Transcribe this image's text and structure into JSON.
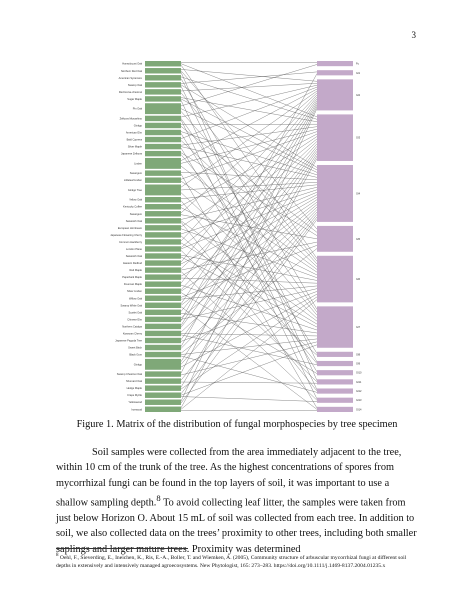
{
  "page": {
    "number": "3"
  },
  "figure": {
    "caption": "Figure 1. Matrix of the distribution of fungal morphospecies by tree specimen",
    "colors": {
      "tree_bar": "#7fa878",
      "fungi_bar": "#c3a9c9",
      "link": "#555555"
    },
    "trees": [
      "Honeylocust Oak",
      "Northern Red Oak",
      "American Sycamore",
      "Swamp Oak",
      "Red Horse-chestnut",
      "Sugar Maple",
      "Pin Oak",
      "Zelkova Musashino",
      "Ginkgo",
      "American Elm",
      "Bald Cypress",
      "Silver Maple",
      "Japanese Zelkova",
      "Linden",
      "Sweetgum",
      "Littleleaf Linden",
      "Ginkgo Tree",
      "Yellow Oak",
      "Kentucky Coffee",
      "Sweetgum",
      "Sawtooth Oak",
      "European Hornbeam",
      "Japanese Flowering Cherry",
      "Common Hackberry",
      "London Plane",
      "Sawtooth Oak",
      "Eastern Redbud",
      "Red Maple",
      "Paperbark Maple",
      "Freeman Maple",
      "Silver Linden",
      "Willow Oak",
      "Swamp White Oak",
      "Scarlet Oak",
      "Chinese Elm",
      "Northern Catalpa",
      "Kwanzan Cherry",
      "Japanese Pagoda Tree",
      "Sweet Birch",
      "Black Gum",
      "Ginkgo",
      "Swamp Chestnut Oak",
      "Shumard Oak",
      "Hedge Maple",
      "Crape Myrtle",
      "Yellowwood",
      "Ironwood"
    ],
    "fungi": [
      "Fu",
      "Gl1",
      "Gl2",
      "Gl3",
      "Gl4",
      "Gl5",
      "Gl6",
      "Gl7",
      "Gl8",
      "Gl9",
      "Gl10",
      "Gl11",
      "Gl12",
      "Gl13",
      "Gl14"
    ],
    "tree_sizes": [
      1,
      1,
      1,
      1,
      1,
      1,
      2,
      1,
      1,
      1,
      1,
      1,
      1,
      2,
      1,
      1,
      2,
      1,
      1,
      1,
      1,
      1,
      1,
      1,
      1,
      1,
      1,
      1,
      1,
      1,
      1,
      1,
      1,
      1,
      1,
      1,
      1,
      1,
      1,
      1,
      2,
      1,
      1,
      1,
      1,
      1,
      1
    ],
    "fungi_sizes": [
      1,
      1,
      6,
      9,
      11,
      5,
      9,
      8,
      1,
      1,
      1,
      1,
      1,
      1,
      1
    ],
    "links": [
      [
        0,
        0
      ],
      [
        0,
        3
      ],
      [
        0,
        6
      ],
      [
        1,
        2
      ],
      [
        1,
        5
      ],
      [
        1,
        11
      ],
      [
        2,
        3
      ],
      [
        2,
        7
      ],
      [
        3,
        1
      ],
      [
        3,
        4
      ],
      [
        3,
        9
      ],
      [
        4,
        2
      ],
      [
        4,
        6
      ],
      [
        5,
        3
      ],
      [
        5,
        4
      ],
      [
        5,
        12
      ],
      [
        6,
        0
      ],
      [
        6,
        4
      ],
      [
        6,
        6
      ],
      [
        7,
        2
      ],
      [
        7,
        7
      ],
      [
        7,
        13
      ],
      [
        8,
        3
      ],
      [
        8,
        5
      ],
      [
        9,
        4
      ],
      [
        9,
        8
      ],
      [
        10,
        2
      ],
      [
        10,
        6
      ],
      [
        11,
        3
      ],
      [
        11,
        4
      ],
      [
        11,
        10
      ],
      [
        12,
        5
      ],
      [
        12,
        7
      ],
      [
        13,
        2
      ],
      [
        13,
        3
      ],
      [
        13,
        6
      ],
      [
        14,
        4
      ],
      [
        14,
        14
      ],
      [
        15,
        3
      ],
      [
        15,
        6
      ],
      [
        16,
        2
      ],
      [
        16,
        4
      ],
      [
        16,
        7
      ],
      [
        17,
        4
      ],
      [
        17,
        9
      ],
      [
        18,
        3
      ],
      [
        18,
        6
      ],
      [
        19,
        2
      ],
      [
        19,
        5
      ],
      [
        20,
        4
      ],
      [
        20,
        7
      ],
      [
        20,
        12
      ],
      [
        21,
        3
      ],
      [
        21,
        6
      ],
      [
        22,
        4
      ],
      [
        22,
        8
      ],
      [
        23,
        2
      ],
      [
        23,
        7
      ],
      [
        24,
        3
      ],
      [
        24,
        4
      ],
      [
        24,
        11
      ],
      [
        25,
        6
      ],
      [
        25,
        7
      ],
      [
        26,
        2
      ],
      [
        26,
        4
      ],
      [
        27,
        3
      ],
      [
        27,
        5
      ],
      [
        27,
        13
      ],
      [
        28,
        4
      ],
      [
        28,
        6
      ],
      [
        29,
        2
      ],
      [
        29,
        7
      ],
      [
        30,
        3
      ],
      [
        30,
        4
      ],
      [
        30,
        10
      ],
      [
        31,
        5
      ],
      [
        31,
        6
      ],
      [
        32,
        2
      ],
      [
        32,
        4
      ],
      [
        32,
        14
      ],
      [
        33,
        3
      ],
      [
        33,
        7
      ],
      [
        34,
        4
      ],
      [
        34,
        6
      ],
      [
        34,
        1
      ],
      [
        35,
        2
      ],
      [
        35,
        3
      ],
      [
        36,
        4
      ],
      [
        36,
        7
      ],
      [
        36,
        9
      ],
      [
        37,
        3
      ],
      [
        37,
        6
      ],
      [
        38,
        2
      ],
      [
        38,
        4
      ],
      [
        39,
        5
      ],
      [
        39,
        7
      ],
      [
        39,
        12
      ],
      [
        40,
        3
      ],
      [
        40,
        4
      ],
      [
        40,
        6
      ],
      [
        41,
        2
      ],
      [
        41,
        7
      ],
      [
        42,
        4
      ],
      [
        42,
        11
      ],
      [
        43,
        3
      ],
      [
        43,
        6
      ],
      [
        44,
        4
      ],
      [
        44,
        7
      ],
      [
        44,
        13
      ],
      [
        45,
        2
      ],
      [
        45,
        4
      ],
      [
        46,
        3
      ],
      [
        46,
        6
      ],
      [
        46,
        14
      ]
    ]
  },
  "paragraph": "Soil samples were collected from the area immediately adjacent to the tree, within 10 cm of the trunk of the tree. As the highest concentrations of spores from mycorrhizal fungi can be found in the top layers of soil, it was important to use a shallow sampling depth.",
  "paragraph_ref": "8",
  "paragraph_2": " To avoid collecting leaf litter, the samples were taken from just below Horizon O. About 15 mL of soil was collected from each tree. In addition to soil, we also collected data on the trees’ proximity to other trees, including both smaller saplings and larger mature trees. Proximity was determined",
  "footnote": {
    "marker": "8",
    "text": " Oehl, F., Sieverding, E., Ineichen, K., Ris, E.-A., Boller, T. and Wiemken, A. (2005), Community structure of arbuscular mycorrhizal fungi at different soil depths in extensively and intensively managed agroecosystems. New Phytologist, 165: 273–283. https://doi.org/10.1111/j.1469-8137.2004.01235.x"
  }
}
